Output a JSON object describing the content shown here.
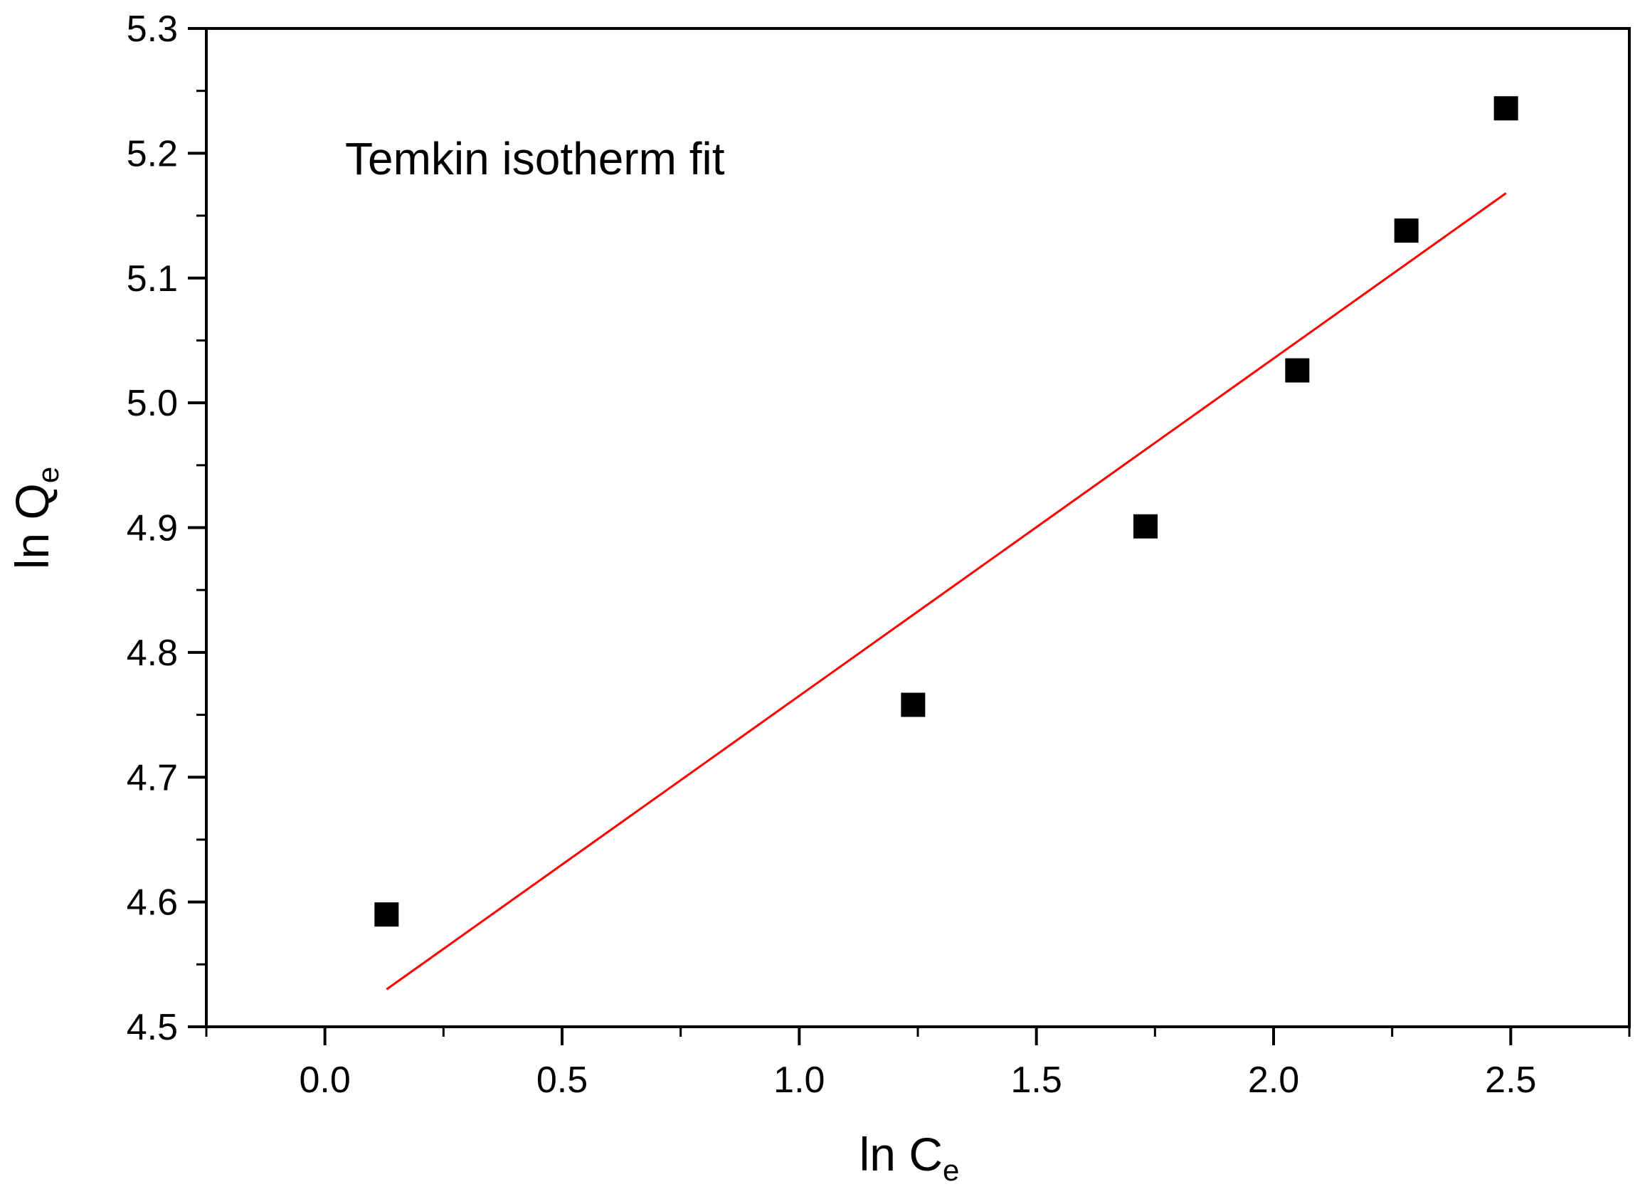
{
  "chart_data": {
    "type": "scatter",
    "annotation": "Temkin isotherm fit",
    "xlabel": {
      "main": "ln C",
      "sub": "e"
    },
    "ylabel": {
      "main": "ln Q",
      "sub": "e"
    },
    "xlim": [
      -0.25,
      2.75
    ],
    "ylim": [
      4.5,
      5.3
    ],
    "xticks": [
      "0.0",
      "0.5",
      "1.0",
      "1.5",
      "2.0",
      "2.5"
    ],
    "xtick_values": [
      0.0,
      0.5,
      1.0,
      1.5,
      2.0,
      2.5
    ],
    "yticks": [
      "4.5",
      "4.6",
      "4.7",
      "4.8",
      "4.9",
      "5.0",
      "5.1",
      "5.2",
      "5.3"
    ],
    "ytick_values": [
      4.5,
      4.6,
      4.7,
      4.8,
      4.9,
      5.0,
      5.1,
      5.2,
      5.3
    ],
    "grid": false,
    "series": [
      {
        "kind": "scatter",
        "marker": "square",
        "color": "#000000",
        "x": [
          0.13,
          1.24,
          1.73,
          2.05,
          2.28,
          2.49
        ],
        "y": [
          4.59,
          4.758,
          4.901,
          5.026,
          5.138,
          5.236
        ]
      },
      {
        "kind": "line",
        "color": "#ff0000",
        "x": [
          0.13,
          2.49
        ],
        "y": [
          4.53,
          5.168
        ]
      }
    ]
  }
}
